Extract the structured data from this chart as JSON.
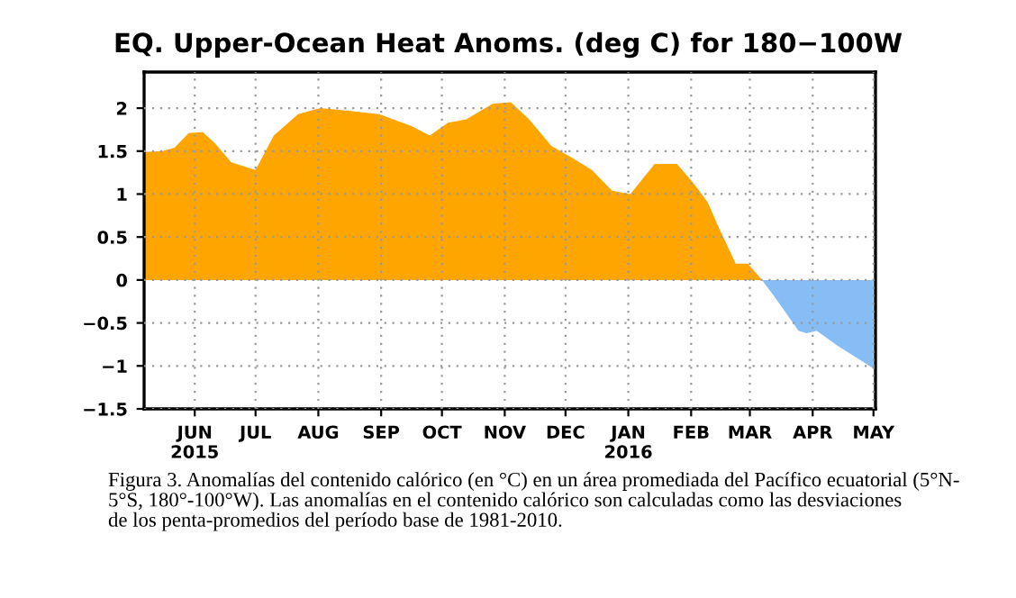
{
  "chart_data": {
    "type": "area",
    "title": "EQ. Upper-Ocean Heat Anoms. (deg C) for 180−100W",
    "series": [
      {
        "color": "#ffa500",
        "x": [
          "2015-05-07",
          "2015-05-16",
          "2015-05-22",
          "2015-05-29",
          "2015-06-05",
          "2015-06-11",
          "2015-06-19",
          "2015-07-01",
          "2015-07-10",
          "2015-07-22",
          "2015-08-02",
          "2015-08-16",
          "2015-08-31",
          "2015-09-16",
          "2015-09-25",
          "2015-10-04",
          "2015-10-13",
          "2015-10-26",
          "2015-11-04",
          "2015-11-13",
          "2015-11-24",
          "2015-12-05",
          "2015-12-14",
          "2015-12-24",
          "2016-01-02",
          "2016-01-14",
          "2016-01-25",
          "2016-02-02",
          "2016-02-09",
          "2016-02-15",
          "2016-02-23",
          "2016-02-29",
          "2016-03-07"
        ],
        "values": [
          1.49,
          1.5,
          1.54,
          1.71,
          1.72,
          1.59,
          1.37,
          1.28,
          1.68,
          1.93,
          2.0,
          1.97,
          1.93,
          1.79,
          1.68,
          1.83,
          1.87,
          2.05,
          2.07,
          1.87,
          1.56,
          1.41,
          1.28,
          1.04,
          1.0,
          1.35,
          1.35,
          1.13,
          0.91,
          0.59,
          0.19,
          0.19,
          0
        ]
      },
      {
        "color": "#87bdf5",
        "x": [
          "2016-03-07",
          "2016-03-13",
          "2016-03-25",
          "2016-03-29",
          "2016-04-03",
          "2016-04-13",
          "2016-04-25",
          "2016-05-01"
        ],
        "values": [
          0,
          -0.19,
          -0.59,
          -0.62,
          -0.59,
          -0.76,
          -0.94,
          -1.03
        ]
      }
    ],
    "xlim": [
      "2015-05-07",
      "2016-05-02"
    ],
    "xticks": [
      {
        "value": "2015-06-01",
        "label": "JUN\n2015"
      },
      {
        "value": "2015-07-01",
        "label": "JUL"
      },
      {
        "value": "2015-08-01",
        "label": "AUG"
      },
      {
        "value": "2015-09-01",
        "label": "SEP"
      },
      {
        "value": "2015-10-01",
        "label": "OCT"
      },
      {
        "value": "2015-11-01",
        "label": "NOV"
      },
      {
        "value": "2015-12-01",
        "label": "DEC"
      },
      {
        "value": "2016-01-01",
        "label": "JAN\n2016"
      },
      {
        "value": "2016-02-01",
        "label": "FEB"
      },
      {
        "value": "2016-03-01",
        "label": "MAR"
      },
      {
        "value": "2016-04-01",
        "label": "APR"
      },
      {
        "value": "2016-05-01",
        "label": "MAY"
      }
    ],
    "ylim": [
      -1.5,
      2.42
    ],
    "yticks": [
      {
        "value": -1.5,
        "label": "−1.5"
      },
      {
        "value": -1,
        "label": "−1"
      },
      {
        "value": -0.5,
        "label": "−0.5"
      },
      0,
      0.5,
      1,
      1.5,
      2
    ],
    "grid": true,
    "annotations": [
      "Figura 3. Anomalías del contenido calórico (en °C) en un área promediada del Pacífico ecuatorial (5°N-\n5°S, 180°-100°W). Las anomalías en el contenido calórico son calculadas como las desviaciones\nde los penta-promedios del período base de 1981-2010."
    ]
  }
}
